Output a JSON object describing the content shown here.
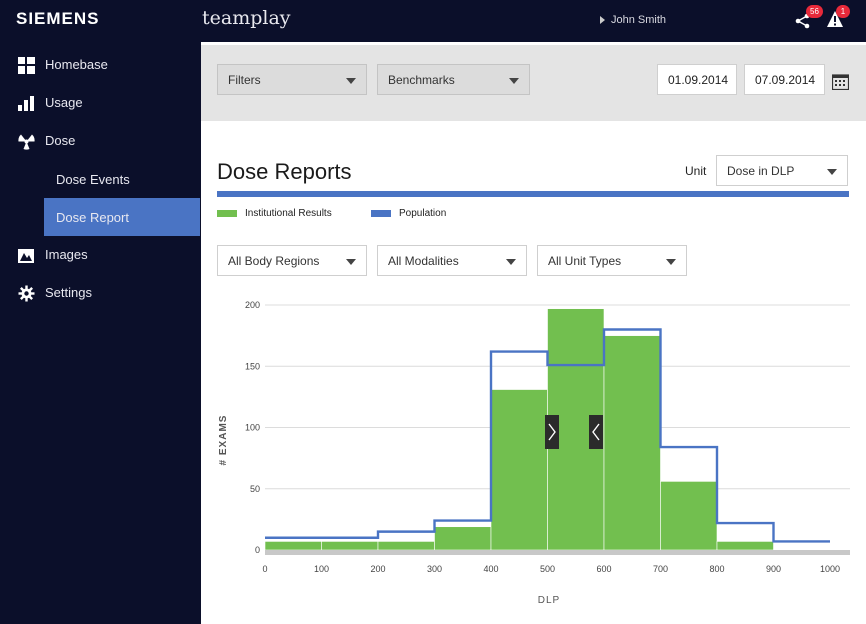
{
  "header": {
    "brand": "SIEMENS",
    "app_name": "teamplay",
    "user_name": "John Smith",
    "share_badge": "56",
    "alert_badge": "1"
  },
  "sidebar": {
    "items": [
      {
        "label": "Homebase",
        "icon": "grid-icon"
      },
      {
        "label": "Usage",
        "icon": "bar-chart-icon"
      },
      {
        "label": "Dose",
        "icon": "radiation-icon"
      },
      {
        "label": "Dose Events",
        "icon": ""
      },
      {
        "label": "Dose Report",
        "icon": "",
        "active": true
      },
      {
        "label": "Images",
        "icon": "images-icon"
      },
      {
        "label": "Settings",
        "icon": "gear-icon"
      }
    ]
  },
  "filters": {
    "filters_label": "Filters",
    "benchmarks_label": "Benchmarks",
    "date_from": "01.09.2014",
    "date_to": "07.09.2014"
  },
  "report": {
    "title": "Dose Reports",
    "unit_label": "Unit",
    "unit_value": "Dose in DLP",
    "legend_institutional": "Institutional Results",
    "legend_population": "Population",
    "body_regions": "All Body Regions",
    "modalities": "All Modalities",
    "unit_types": "All Unit Types"
  },
  "colors": {
    "accent": "#4a74c4",
    "institutional": "#72bf4f",
    "population": "#4a74c4",
    "sidebar_bg": "#0b0f2a"
  },
  "chart_data": {
    "type": "bar",
    "xlabel": "DLP",
    "ylabel": "# EXAMS",
    "xlim": [
      0,
      1000
    ],
    "ylim": [
      0,
      200
    ],
    "x_ticks": [
      0,
      100,
      200,
      300,
      400,
      500,
      600,
      700,
      800,
      900,
      1000
    ],
    "y_ticks": [
      0,
      50,
      100,
      150,
      200
    ],
    "bin_edges": [
      0,
      100,
      200,
      300,
      400,
      500,
      600,
      700,
      800,
      900,
      1000
    ],
    "series": [
      {
        "name": "Institutional Results",
        "style": "filled-bars",
        "values": [
          7,
          7,
          7,
          19,
          131,
          197,
          175,
          56,
          7,
          0
        ]
      },
      {
        "name": "Population",
        "style": "step-line",
        "values": [
          10,
          10,
          15,
          24,
          162,
          151,
          180,
          84,
          22,
          7
        ]
      }
    ]
  }
}
